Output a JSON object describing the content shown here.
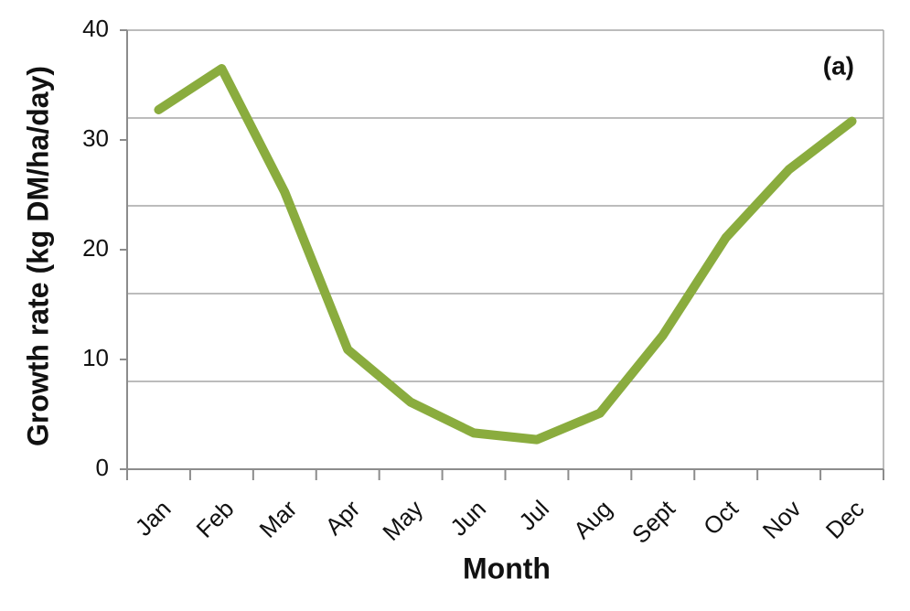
{
  "chart_data": {
    "type": "line",
    "y_label": "Growth rate (kg DM/ha/day)",
    "x_label": "Month",
    "annotation": "(a)",
    "categories": [
      "Jan",
      "Feb",
      "Mar",
      "Apr",
      "May",
      "Jun",
      "Jul",
      "Aug",
      "Sept",
      "Oct",
      "Nov",
      "Dec"
    ],
    "values": [
      32.75,
      36.5,
      25.25,
      10.9,
      6.1,
      3.3,
      2.7,
      5.1,
      12.2,
      21.1,
      27.3,
      31.7
    ],
    "color": "#8aac3e",
    "ylim": [
      0,
      40
    ],
    "yticks": [
      0,
      10,
      20,
      30,
      40
    ],
    "grid": [
      8,
      16,
      24,
      32,
      40
    ]
  }
}
